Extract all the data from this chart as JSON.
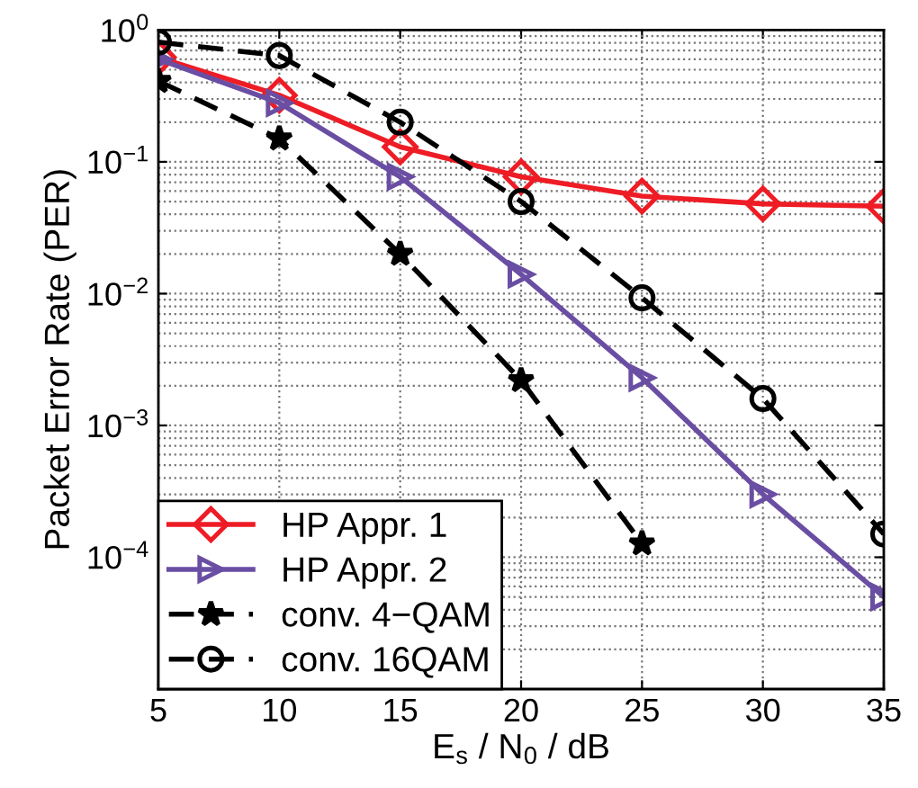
{
  "chart_data": {
    "type": "line",
    "xlabel": "E$_{s}$ / N$_{0}$ / dB",
    "ylabel": "Packet Error Rate (PER)",
    "x": [
      5,
      10,
      15,
      20,
      25,
      30,
      35
    ],
    "series": [
      {
        "name": "HP Appr. 1",
        "color": "#ee1c25",
        "marker": "diamond",
        "line_style": "solid",
        "values": [
          0.62,
          0.32,
          0.13,
          0.077,
          0.055,
          0.048,
          0.046
        ]
      },
      {
        "name": "HP Appr. 2",
        "color": "#6a4ea3",
        "marker": "triangle",
        "line_style": "solid",
        "values": [
          0.6,
          0.28,
          0.077,
          0.014,
          0.0023,
          0.0003,
          5e-05
        ]
      },
      {
        "name": "conv. 4−QAM",
        "color": "#000000",
        "marker": "star",
        "line_style": "dashed",
        "values": [
          0.41,
          0.15,
          0.02,
          0.0022,
          0.000127,
          null,
          null
        ]
      },
      {
        "name": "conv. 16QAM",
        "color": "#000000",
        "marker": "circle",
        "line_style": "dashed",
        "values": [
          0.81,
          0.64,
          0.2,
          0.05,
          0.0093,
          0.0016,
          0.00015
        ]
      }
    ],
    "log": "y",
    "xlim": [
      5,
      35
    ],
    "xticks": [
      5,
      10,
      15,
      20,
      25,
      30,
      35
    ],
    "ylim": [
      1e-05,
      1
    ],
    "yticks": [
      {
        "value": 1e-05,
        "label": null
      },
      {
        "value": 0.0001,
        "label": "10$^{−4}$"
      },
      {
        "value": 0.001,
        "label": "10$^{−3}$"
      },
      {
        "value": 0.01,
        "label": "10$^{−2}$"
      },
      {
        "value": 0.1,
        "label": "10$^{−1}$"
      },
      {
        "value": 1,
        "label": "10$^{0}$"
      }
    ],
    "grid": true,
    "legend": "bottom left"
  }
}
